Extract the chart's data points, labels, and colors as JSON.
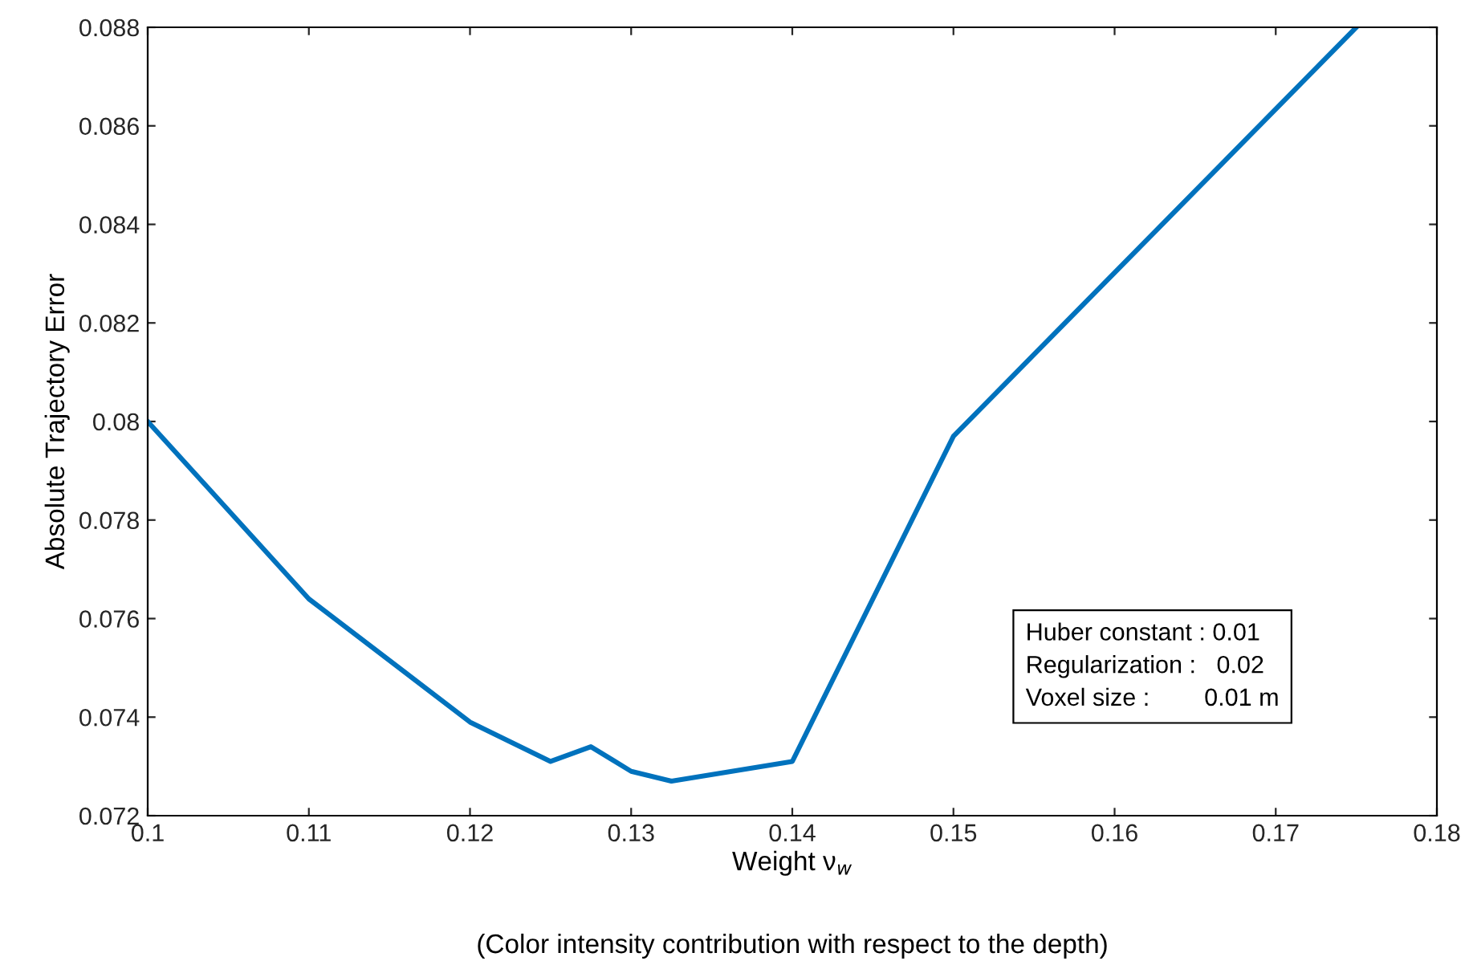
{
  "chart_data": {
    "type": "line",
    "x": [
      0.1,
      0.11,
      0.12,
      0.125,
      0.1275,
      0.13,
      0.1325,
      0.14,
      0.15,
      0.175
    ],
    "series": [
      {
        "color": "#0072bd",
        "values": [
          0.08,
          0.0764,
          0.0739,
          0.0731,
          0.0734,
          0.0729,
          0.0727,
          0.0731,
          0.0797,
          0.088
        ]
      }
    ],
    "xlabel": "Weight ν$_{w}$",
    "ylabel": "Absolute Trajectory Error",
    "annotations": [
      "Huber constant : 0.01\nRegularization :   0.02\nVoxel size :        0.01 m",
      "(Color intensity contribution with respect to the depth)"
    ],
    "xlim": [
      0.1,
      0.18
    ],
    "xticks": [
      {
        "value": 0.1,
        "label": "0.1"
      },
      0.11,
      0.12,
      0.13,
      0.14,
      0.15,
      0.16,
      0.17,
      0.18
    ],
    "ylim": [
      0.072,
      0.088
    ],
    "yticks": [
      0.072,
      0.074,
      0.076,
      0.078,
      {
        "value": 0.08,
        "label": "0.08"
      },
      0.082,
      0.084,
      0.086,
      0.088
    ],
    "grid": false,
    "legend": false,
    "marker": "none",
    "line_style": "solid"
  }
}
